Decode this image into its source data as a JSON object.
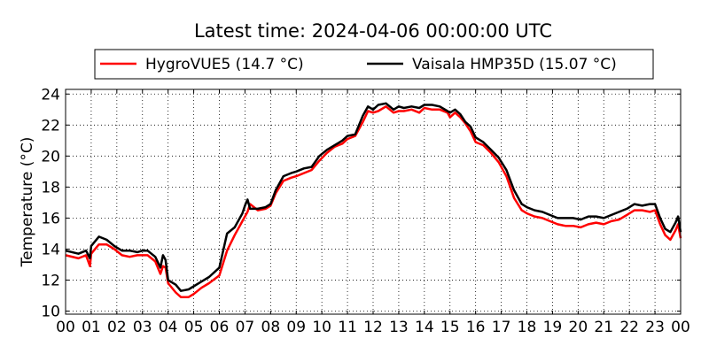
{
  "chart_data": {
    "type": "line",
    "title": "Latest time: 2024-04-06 00:00:00 UTC",
    "xlabel": "",
    "ylabel": "Temperature (°C)",
    "xlim": [
      0,
      24
    ],
    "ylim": [
      9.8,
      24.3
    ],
    "x_tick_labels": [
      "00",
      "01",
      "02",
      "03",
      "04",
      "05",
      "06",
      "07",
      "08",
      "09",
      "10",
      "11",
      "12",
      "13",
      "14",
      "15",
      "16",
      "17",
      "18",
      "19",
      "20",
      "21",
      "22",
      "23",
      "00"
    ],
    "y_ticks": [
      10,
      12,
      14,
      16,
      18,
      20,
      22,
      24
    ],
    "grid": true,
    "legend_position": "top",
    "x": [
      0,
      0.5,
      0.8,
      0.95,
      1.0,
      1.3,
      1.6,
      1.9,
      2.2,
      2.5,
      2.8,
      3.0,
      3.2,
      3.5,
      3.7,
      3.8,
      3.9,
      4.0,
      4.3,
      4.5,
      4.8,
      5.0,
      5.3,
      5.6,
      6.0,
      6.3,
      6.6,
      6.9,
      7.0,
      7.1,
      7.2,
      7.5,
      7.8,
      8.0,
      8.2,
      8.5,
      8.8,
      9.0,
      9.3,
      9.6,
      9.9,
      10.2,
      10.5,
      10.8,
      11.0,
      11.3,
      11.6,
      11.8,
      12.0,
      12.2,
      12.5,
      12.8,
      13.0,
      13.2,
      13.5,
      13.8,
      14.0,
      14.3,
      14.6,
      14.9,
      15.0,
      15.2,
      15.4,
      15.6,
      15.8,
      16.0,
      16.3,
      16.6,
      16.9,
      17.2,
      17.5,
      17.8,
      18.0,
      18.3,
      18.6,
      18.9,
      19.2,
      19.5,
      19.8,
      20.1,
      20.4,
      20.7,
      21.0,
      21.3,
      21.6,
      21.9,
      22.2,
      22.5,
      22.8,
      23.0,
      23.2,
      23.4,
      23.6,
      23.8,
      23.9,
      24.0
    ],
    "series": [
      {
        "name": "HygroVUE5 (14.7 °C)",
        "color": "#ff0000",
        "values": [
          13.6,
          13.4,
          13.6,
          12.9,
          13.7,
          14.3,
          14.3,
          14.0,
          13.6,
          13.5,
          13.6,
          13.6,
          13.6,
          13.2,
          12.4,
          12.9,
          12.8,
          11.8,
          11.2,
          10.9,
          10.9,
          11.1,
          11.5,
          11.8,
          12.3,
          13.9,
          14.9,
          15.8,
          16.1,
          16.4,
          16.9,
          16.5,
          16.6,
          16.8,
          17.6,
          18.4,
          18.6,
          18.7,
          18.9,
          19.1,
          19.7,
          20.2,
          20.6,
          20.8,
          21.1,
          21.3,
          22.2,
          22.9,
          22.8,
          22.9,
          23.2,
          22.8,
          22.9,
          22.9,
          23.0,
          22.8,
          23.1,
          23.0,
          23.0,
          22.8,
          22.5,
          22.8,
          22.5,
          22.1,
          21.6,
          20.9,
          20.7,
          20.2,
          19.6,
          18.7,
          17.3,
          16.5,
          16.3,
          16.1,
          16.0,
          15.8,
          15.6,
          15.5,
          15.5,
          15.4,
          15.6,
          15.7,
          15.6,
          15.8,
          15.9,
          16.2,
          16.5,
          16.5,
          16.4,
          16.5,
          15.6,
          14.9,
          14.6,
          15.2,
          15.6,
          14.7
        ]
      },
      {
        "name": "Vaisala HMP35D (15.07 °C)",
        "color": "#000000",
        "values": [
          13.9,
          13.7,
          13.9,
          13.4,
          14.2,
          14.8,
          14.6,
          14.2,
          13.9,
          13.9,
          13.8,
          13.9,
          13.9,
          13.5,
          12.8,
          13.6,
          13.3,
          12.0,
          11.7,
          11.3,
          11.4,
          11.6,
          11.9,
          12.2,
          12.8,
          15.0,
          15.4,
          16.3,
          16.8,
          17.2,
          16.6,
          16.6,
          16.7,
          16.9,
          17.8,
          18.7,
          18.9,
          19.0,
          19.2,
          19.3,
          20.0,
          20.4,
          20.7,
          21.0,
          21.3,
          21.4,
          22.6,
          23.2,
          23.0,
          23.3,
          23.4,
          23.0,
          23.2,
          23.1,
          23.2,
          23.1,
          23.3,
          23.3,
          23.2,
          22.9,
          22.8,
          23.0,
          22.7,
          22.2,
          21.9,
          21.2,
          20.9,
          20.4,
          19.9,
          19.1,
          17.8,
          16.9,
          16.7,
          16.5,
          16.4,
          16.2,
          16.0,
          16.0,
          16.0,
          15.9,
          16.1,
          16.1,
          16.0,
          16.2,
          16.4,
          16.6,
          16.9,
          16.8,
          16.9,
          16.9,
          16.0,
          15.3,
          15.1,
          15.7,
          16.1,
          15.1
        ]
      }
    ]
  }
}
